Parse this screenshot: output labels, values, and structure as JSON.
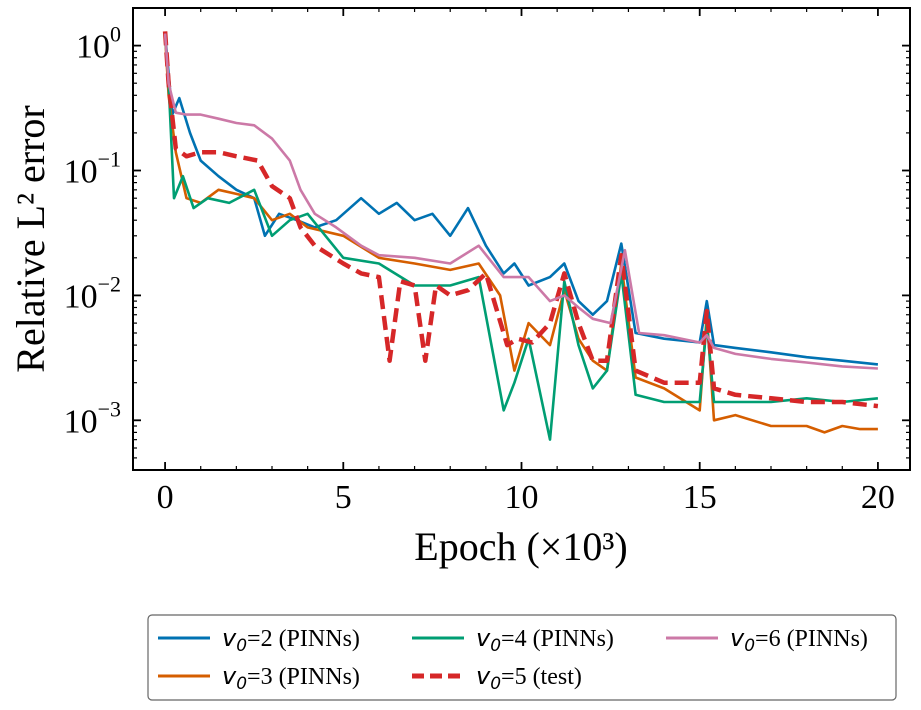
{
  "chart_data": {
    "type": "line",
    "xlabel": "Epoch (×10³)",
    "ylabel": "Relative L² error",
    "x_scale": "linear",
    "y_scale": "log",
    "xlim": [
      -0.9,
      20.9
    ],
    "ylim": [
      0.0004,
      2.0
    ],
    "x_ticks": [
      0,
      5,
      10,
      15,
      20
    ],
    "x_tick_labels": [
      "0",
      "5",
      "10",
      "15",
      "20"
    ],
    "y_ticks": [
      0.001,
      0.01,
      0.1,
      1
    ],
    "y_tick_labels": [
      {
        "base": "10",
        "exp": "−3"
      },
      {
        "base": "10",
        "exp": "−2"
      },
      {
        "base": "10",
        "exp": "−1"
      },
      {
        "base": "10",
        "exp": "0"
      }
    ],
    "grid": false,
    "legend_position": "bottom-center",
    "series": [
      {
        "name": "v0=2 (PINNs)",
        "label_parts": {
          "sym": "v",
          "sub": "0",
          "rest": "=2 (PINNs)"
        },
        "color": "#0072b2",
        "dash": "solid",
        "x": [
          0.0,
          0.1,
          0.2,
          0.4,
          0.7,
          1.0,
          1.5,
          2.0,
          2.5,
          2.8,
          3.2,
          3.7,
          4.2,
          4.8,
          5.5,
          6.0,
          6.5,
          7.0,
          7.5,
          8.0,
          8.5,
          9.0,
          9.5,
          9.8,
          10.2,
          10.8,
          11.2,
          11.6,
          12.0,
          12.4,
          12.8,
          13.2,
          14.0,
          15.0,
          15.2,
          15.4,
          16.0,
          17.0,
          18.0,
          19.0,
          20.0
        ],
        "y": [
          1.25,
          0.6,
          0.28,
          0.38,
          0.2,
          0.12,
          0.09,
          0.07,
          0.06,
          0.03,
          0.045,
          0.04,
          0.035,
          0.04,
          0.06,
          0.045,
          0.055,
          0.04,
          0.045,
          0.03,
          0.05,
          0.025,
          0.015,
          0.018,
          0.012,
          0.014,
          0.018,
          0.009,
          0.007,
          0.009,
          0.026,
          0.005,
          0.0045,
          0.0042,
          0.009,
          0.004,
          0.0038,
          0.0035,
          0.0032,
          0.003,
          0.0028
        ]
      },
      {
        "name": "v0=3 (PINNs)",
        "label_parts": {
          "sym": "v",
          "sub": "0",
          "rest": "=3 (PINNs)"
        },
        "color": "#d55e00",
        "dash": "solid",
        "x": [
          0.0,
          0.1,
          0.3,
          0.6,
          1.0,
          1.5,
          2.0,
          2.5,
          3.0,
          3.5,
          4.0,
          5.0,
          6.0,
          7.0,
          8.0,
          8.8,
          9.4,
          9.8,
          10.2,
          10.8,
          11.2,
          11.6,
          12.0,
          12.4,
          12.8,
          13.2,
          14.0,
          15.0,
          15.2,
          15.4,
          16.0,
          17.0,
          18.0,
          18.5,
          19.0,
          19.5,
          20.0
        ],
        "y": [
          1.2,
          0.4,
          0.14,
          0.06,
          0.055,
          0.07,
          0.065,
          0.06,
          0.04,
          0.045,
          0.035,
          0.03,
          0.02,
          0.018,
          0.016,
          0.018,
          0.01,
          0.0025,
          0.006,
          0.004,
          0.011,
          0.0045,
          0.003,
          0.0025,
          0.018,
          0.0022,
          0.0018,
          0.0012,
          0.007,
          0.001,
          0.0011,
          0.0009,
          0.0009,
          0.0008,
          0.0009,
          0.00085,
          0.00085
        ]
      },
      {
        "name": "v0=4 (PINNs)",
        "label_parts": {
          "sym": "v",
          "sub": "0",
          "rest": "=4 (PINNs)"
        },
        "color": "#009e73",
        "dash": "solid",
        "x": [
          0.0,
          0.1,
          0.25,
          0.5,
          0.8,
          1.2,
          1.8,
          2.5,
          3.0,
          3.5,
          4.0,
          5.0,
          6.0,
          7.0,
          8.0,
          8.8,
          9.5,
          9.8,
          10.2,
          10.8,
          11.2,
          11.6,
          12.0,
          12.4,
          12.8,
          13.2,
          14.0,
          15.0,
          15.2,
          15.4,
          16.0,
          17.0,
          18.0,
          19.0,
          20.0
        ],
        "y": [
          1.25,
          0.5,
          0.06,
          0.09,
          0.05,
          0.06,
          0.055,
          0.07,
          0.03,
          0.04,
          0.045,
          0.02,
          0.018,
          0.012,
          0.012,
          0.014,
          0.0012,
          0.002,
          0.0045,
          0.0007,
          0.013,
          0.004,
          0.0018,
          0.0025,
          0.015,
          0.0016,
          0.0014,
          0.0014,
          0.006,
          0.0014,
          0.0014,
          0.0014,
          0.0015,
          0.0014,
          0.0015
        ]
      },
      {
        "name": "v0=5 (test)",
        "label_parts": {
          "sym": "v",
          "sub": "0",
          "rest": "=5 (test)"
        },
        "color": "#d62728",
        "dash": "dashed",
        "x": [
          0.0,
          0.1,
          0.3,
          0.6,
          1.0,
          1.5,
          2.0,
          2.6,
          3.0,
          3.5,
          3.8,
          4.2,
          5.0,
          5.5,
          6.0,
          6.3,
          6.6,
          7.0,
          7.3,
          7.6,
          8.0,
          8.5,
          9.0,
          9.6,
          9.9,
          10.3,
          10.8,
          11.2,
          11.6,
          12.0,
          12.4,
          12.8,
          13.2,
          14.0,
          15.0,
          15.2,
          15.4,
          16.0,
          17.0,
          18.0,
          19.0,
          20.0
        ],
        "y": [
          1.3,
          0.5,
          0.15,
          0.13,
          0.14,
          0.14,
          0.13,
          0.12,
          0.075,
          0.06,
          0.035,
          0.025,
          0.018,
          0.015,
          0.014,
          0.003,
          0.013,
          0.012,
          0.003,
          0.012,
          0.01,
          0.011,
          0.015,
          0.004,
          0.0045,
          0.0042,
          0.006,
          0.015,
          0.006,
          0.003,
          0.003,
          0.021,
          0.0025,
          0.002,
          0.002,
          0.0075,
          0.0018,
          0.0016,
          0.0015,
          0.0014,
          0.0014,
          0.0013
        ]
      },
      {
        "name": "v0=6 (PINNs)",
        "label_parts": {
          "sym": "v",
          "sub": "0",
          "rest": "=6 (PINNs)"
        },
        "color": "#cc79a7",
        "dash": "solid",
        "x": [
          0.0,
          0.1,
          0.3,
          0.6,
          1.0,
          1.5,
          2.0,
          2.5,
          3.0,
          3.5,
          3.8,
          4.2,
          4.8,
          5.5,
          6.0,
          7.0,
          8.0,
          8.8,
          9.5,
          10.2,
          10.8,
          11.2,
          11.6,
          12.0,
          12.5,
          12.9,
          13.3,
          14.0,
          15.0,
          15.2,
          15.4,
          16.0,
          17.0,
          18.0,
          19.0,
          20.0
        ],
        "y": [
          1.25,
          0.5,
          0.29,
          0.28,
          0.28,
          0.26,
          0.24,
          0.23,
          0.18,
          0.12,
          0.07,
          0.045,
          0.035,
          0.025,
          0.021,
          0.02,
          0.018,
          0.025,
          0.014,
          0.014,
          0.009,
          0.01,
          0.008,
          0.0065,
          0.006,
          0.023,
          0.005,
          0.0048,
          0.0042,
          0.0048,
          0.0038,
          0.0034,
          0.0031,
          0.0029,
          0.0027,
          0.0026
        ]
      }
    ]
  }
}
